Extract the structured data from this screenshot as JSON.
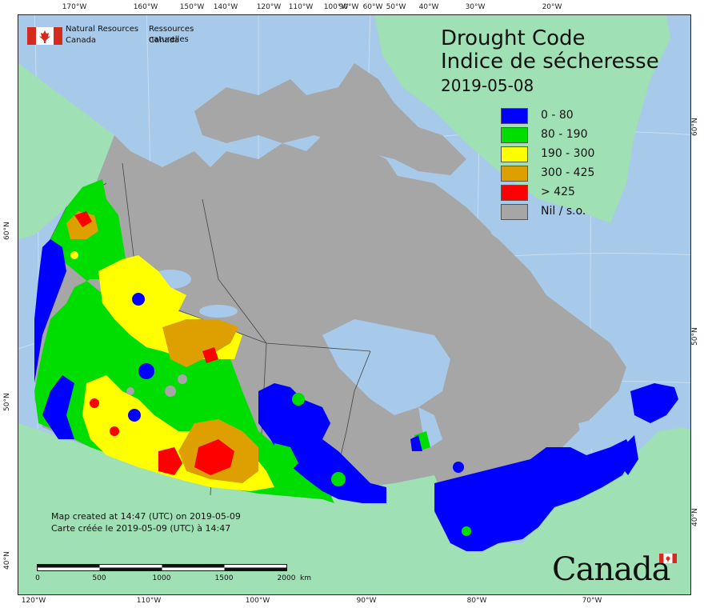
{
  "header": {
    "department_en_line1": "Natural Resources",
    "department_en_line2": "Canada",
    "department_fr_line1": "Ressources naturelles",
    "department_fr_line2": "Canada"
  },
  "title": {
    "en": "Drought Code",
    "fr": "Indice de sécheresse",
    "date": "2019-05-08"
  },
  "legend": [
    {
      "label": "0 - 80",
      "color": "#0000ff"
    },
    {
      "label": "80 - 190",
      "color": "#00dd00"
    },
    {
      "label": "190 - 300",
      "color": "#ffff00"
    },
    {
      "label": "300 - 425",
      "color": "#dda000"
    },
    {
      "label": "> 425",
      "color": "#ff0000"
    },
    {
      "label": "Nil / s.o.",
      "color": "#a6a6a6"
    }
  ],
  "credit": {
    "en": "Map created at 14:47 (UTC) on 2019-05-09",
    "fr": "Carte créée le 2019-05-09 (UTC) à 14:47"
  },
  "scale": {
    "labels": [
      "0",
      "500",
      "1000",
      "1500",
      "2000"
    ],
    "unit": "km"
  },
  "graticule": {
    "top": [
      "170°W",
      "160°W",
      "150°W",
      "140°W",
      "120°W",
      "110°W",
      "100°W",
      "90°W",
      "80°W",
      "60°W",
      "50°W",
      "40°W",
      "30°W",
      "20°W"
    ],
    "bottom": [
      "120°W",
      "110°W",
      "100°W",
      "90°W",
      "80°W",
      "70°W"
    ],
    "right": [
      "60°N",
      "50°N",
      "40°N"
    ],
    "left": [
      "60°N",
      "50°N",
      "40°N"
    ]
  },
  "wordmark": "Canada",
  "colors": {
    "ocean": "#a7c9ea",
    "foreign_land": "#9fe0b4",
    "nil": "#a6a6a6",
    "lake": "#a7c9ea"
  }
}
